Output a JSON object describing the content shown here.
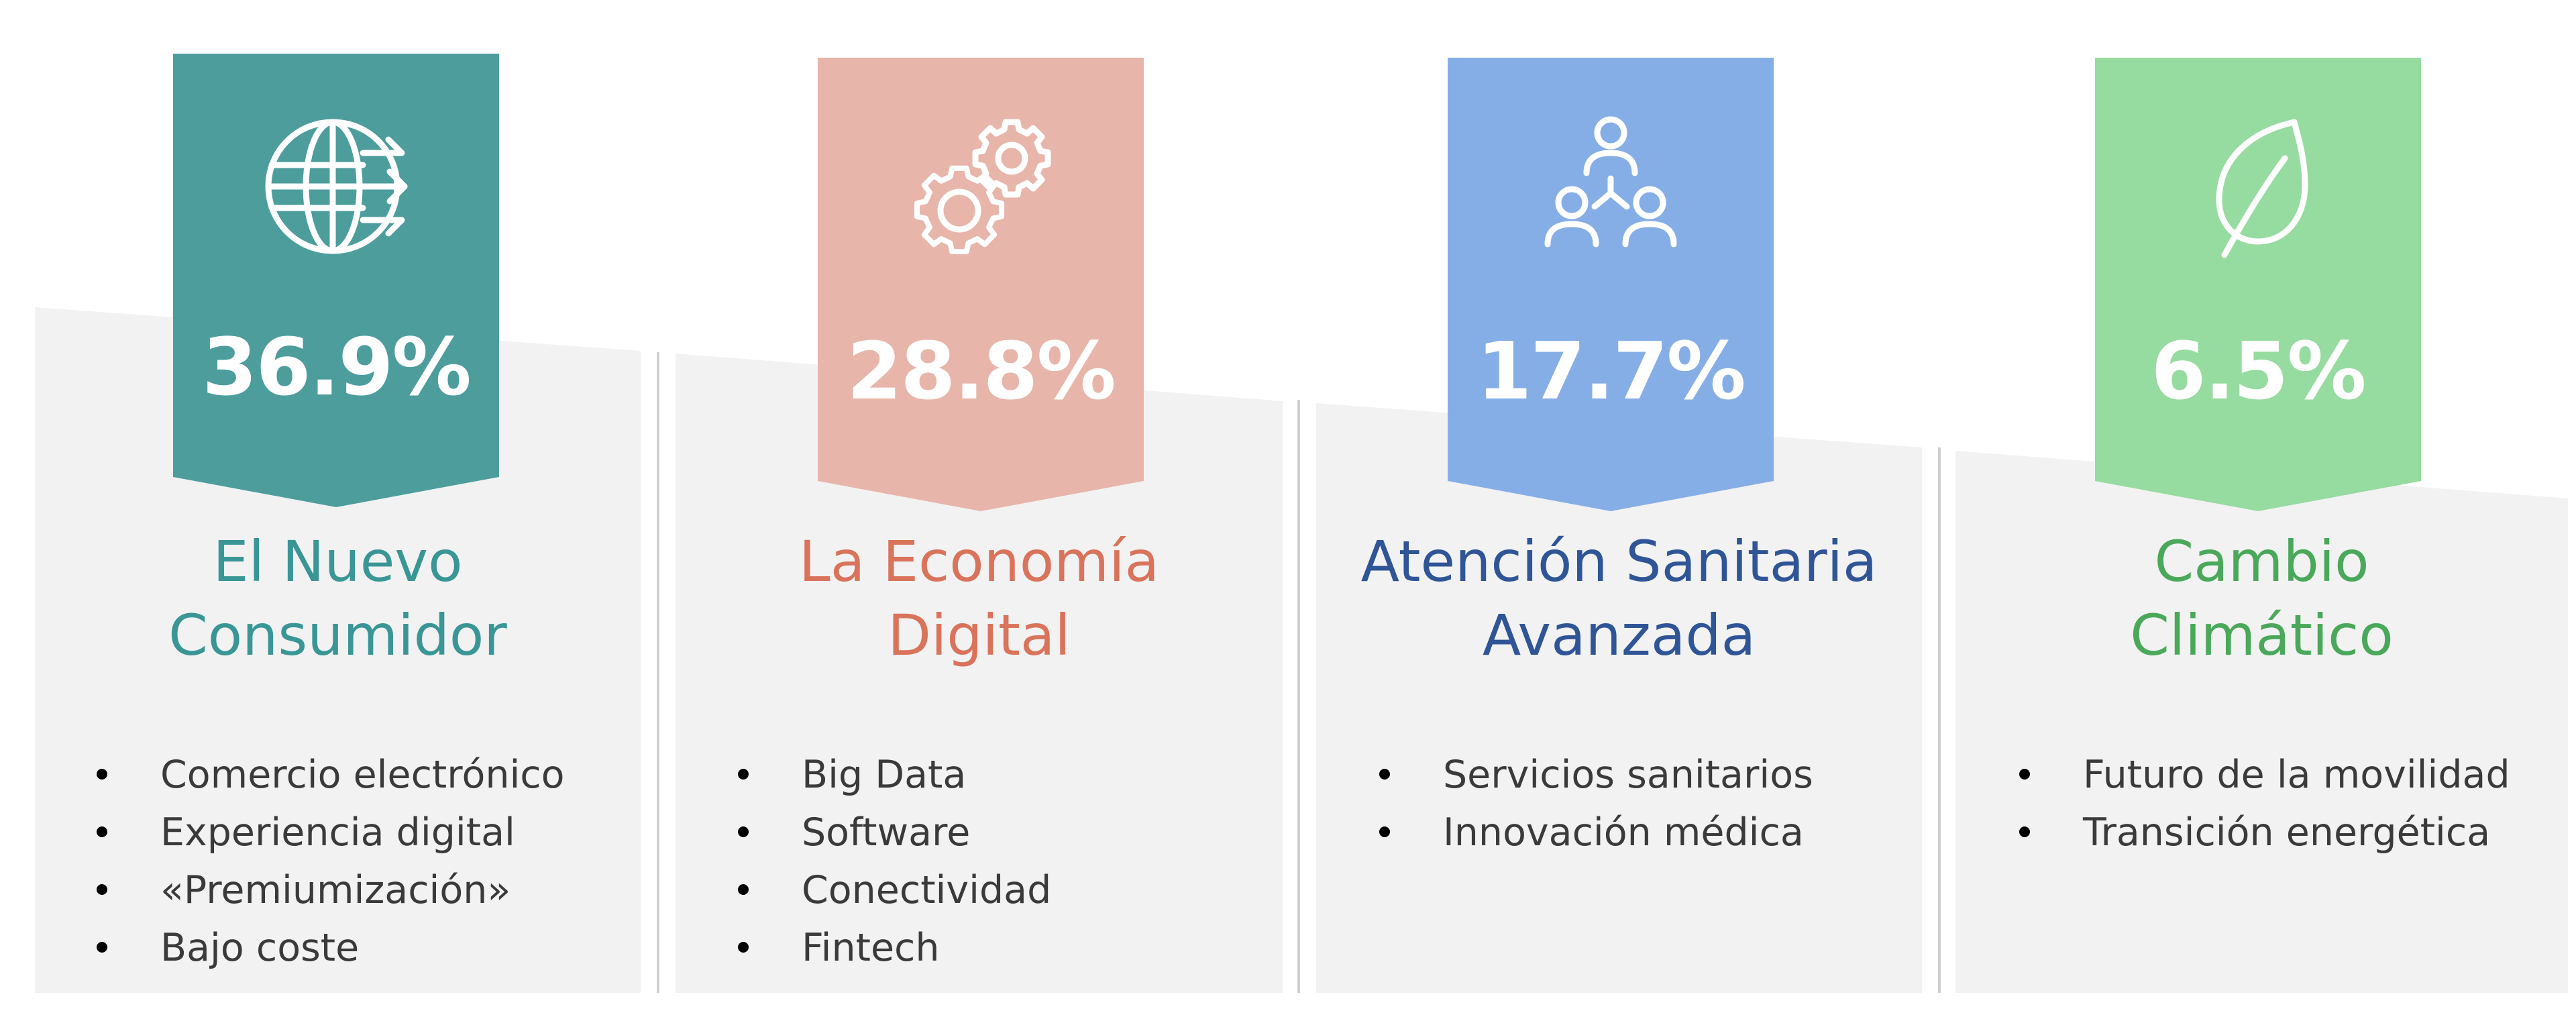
{
  "colors": {
    "panel": "#f2f2f2",
    "divider": "#cfcfcf",
    "bullet_text": "#3a3a3a"
  },
  "columns": [
    {
      "percent": "36.9%",
      "title_lines": [
        "El Nuevo",
        "Consumidor"
      ],
      "banner_color": "#4d9d9d",
      "title_color": "#3a9696",
      "icon": "globe-arrows-icon",
      "bullets": [
        "Comercio electrónico",
        "Experiencia digital",
        "«Premiumización»",
        "Bajo coste"
      ]
    },
    {
      "percent": "28.8%",
      "title_lines": [
        "La Economía",
        "Digital"
      ],
      "banner_color": "#e8b5aa",
      "title_color": "#d9735b",
      "icon": "gears-icon",
      "bullets": [
        "Big Data",
        "Software",
        "Conectividad",
        "Fintech"
      ]
    },
    {
      "percent": "17.7%",
      "title_lines": [
        "Atención Sanitaria",
        "Avanzada"
      ],
      "banner_color": "#86aee6",
      "title_color": "#2f5597",
      "icon": "people-network-icon",
      "bullets": [
        "Servicios sanitarios",
        "Innovación médica"
      ]
    },
    {
      "percent": "6.5%",
      "title_lines": [
        "Cambio",
        "Climático"
      ],
      "banner_color": "#96db9f",
      "title_color": "#4aa85a",
      "icon": "leaf-icon",
      "bullets": [
        "Futuro de la movilidad",
        "Transición energética"
      ]
    }
  ]
}
